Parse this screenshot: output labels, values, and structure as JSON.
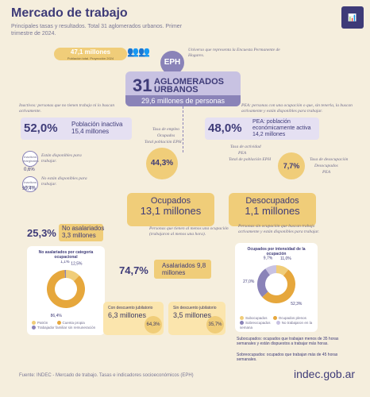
{
  "header": {
    "title": "Mercado de trabajo",
    "subtitle": "Principales tasas y resultados. Total 31 aglomerados urbanos. Primer trimestre de 2024.",
    "logo": "indec-logo-icon"
  },
  "population": {
    "value": "47,1 millones",
    "caption": "Población total. Proyección 2024"
  },
  "eph": {
    "label": "EPH",
    "note": "Universo que representa la Encuesta Permanente de Hogares.",
    "num": "31",
    "label_big": "AGLOMERADOS URBANOS",
    "persons": "29,6 millones de personas"
  },
  "inactivos": {
    "note": "Inactivos: personas que no tienen trabajo ni lo buscan activamente.",
    "pct": "52,0%",
    "label": "Población inactiva 15,4 millones",
    "disponibles_circle": "Inactivos marginales",
    "disponibles_pct": "0,6%",
    "disponibles_text": "Están disponibles para trabajar.",
    "no_disponibles_circle": "Inactivos típicos",
    "no_disponibles_pct": "99,4%",
    "no_disponibles_text": "No están disponibles para trabajar."
  },
  "pea": {
    "note": "PEA: personas con una ocupación o que, sin tenerla, la buscan activamente y están disponibles para trabajar.",
    "pct": "48,0%",
    "label": "PEA: población económicamente activa 14,2 millones",
    "tasa_actividad": "Tasa de actividad",
    "tasa_actividad_formula_num": "PEA",
    "tasa_actividad_formula_den": "Total de población EPH"
  },
  "empleo": {
    "label": "Tasa de empleo",
    "num": "Ocupados",
    "den": "Total población EPH",
    "pct": "44,3%"
  },
  "desocupacion": {
    "label": "Tasa de desocupación",
    "num": "Desocupados",
    "den": "PEA",
    "pct": "7,7%"
  },
  "ocupados": {
    "title": "Ocupados",
    "value": "13,1 millones",
    "note": "Personas que tienen al menos una ocupación (trabajaron al menos una hora)."
  },
  "desocupados": {
    "title": "Desocupados",
    "value": "1,1 millones",
    "note": "Personas sin ocupación que buscan trabajo activamente y están disponibles para trabajar."
  },
  "no_asalariados": {
    "pct": "25,3%",
    "label": "No asalariados 3,3 millones",
    "panel_title": "No asalariados por categoría ocupacional",
    "legend": [
      "Patrón",
      "Cuenta propia",
      "Trabajador familiar sin remuneración"
    ],
    "colors": [
      "#f0cd79",
      "#e6a73c",
      "#8a83b8"
    ]
  },
  "asalariados": {
    "pct": "74,7%",
    "label": "Asalariados 9,8 millones",
    "con_label": "Con descuento jubilatorio",
    "con_value": "6,3 millones",
    "con_pct": "64,3%",
    "sin_label": "Sin descuento jubilatorio",
    "sin_value": "3,5 millones",
    "sin_pct": "35,7%"
  },
  "intensidad": {
    "panel_title": "Ocupados por intensidad de la ocupación",
    "legend": [
      "Subocupados",
      "Ocupados plenos",
      "Sobreocupados",
      "No trabajaron en la semana"
    ],
    "subocupados_text": "Subocupados: ocupados que trabajan menos de 35 horas semanales y están dispuestos a trabajar más horas.",
    "sobreocupados_text": "Sobreocupados: ocupados que trabajan más de 45 horas semanales."
  },
  "chart_data": [
    {
      "type": "pie",
      "title": "No asalariados por categoría ocupacional",
      "categories": [
        "Patrón",
        "Cuenta propia",
        "Trabajador familiar sin remuneración"
      ],
      "values": [
        12.5,
        86.4,
        1.1
      ],
      "labels": [
        "12,5%",
        "86,4%",
        "1,1%"
      ]
    },
    {
      "type": "pie",
      "title": "Ocupados por intensidad de la ocupación",
      "categories": [
        "Subocupados",
        "Ocupados plenos",
        "Sobreocupados",
        "No trabajaron en la semana"
      ],
      "values": [
        11.0,
        52.3,
        27.0,
        9.7
      ],
      "labels": [
        "11,0%",
        "52,3%",
        "27,0%",
        "9,7%"
      ]
    }
  ],
  "footer": {
    "source": "Fuente: INDEC - Mercado de trabajo. Tasas e indicadores socioeconómicos (EPH)",
    "brand": "indec.gob.ar"
  }
}
